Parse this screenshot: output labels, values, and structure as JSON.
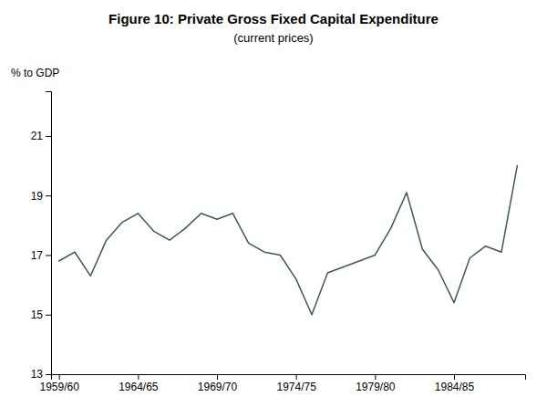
{
  "chart_data": {
    "type": "line",
    "title": "Figure 10: Private Gross Fixed Capital Expenditure",
    "subtitle": "(current prices)",
    "y_label": "% to GDP",
    "categories": [
      "1959/60",
      null,
      null,
      null,
      null,
      "1964/65",
      null,
      null,
      null,
      null,
      "1969/70",
      null,
      null,
      null,
      null,
      "1974/75",
      null,
      null,
      null,
      null,
      "1979/80",
      null,
      null,
      null,
      null,
      "1984/85",
      null,
      null,
      null,
      null
    ],
    "values": [
      16.8,
      17.1,
      16.3,
      17.5,
      18.1,
      18.4,
      17.8,
      17.5,
      17.9,
      18.4,
      18.2,
      18.4,
      17.4,
      17.1,
      17.0,
      16.2,
      15.0,
      16.4,
      16.6,
      16.8,
      17.0,
      17.9,
      19.1,
      17.2,
      16.5,
      15.4,
      16.9,
      17.3,
      17.1,
      20.0
    ],
    "color": "#3d5a4c",
    "ylim": [
      13,
      22.5
    ],
    "yticks": [
      13,
      15,
      17,
      19,
      21
    ],
    "grid": false
  }
}
